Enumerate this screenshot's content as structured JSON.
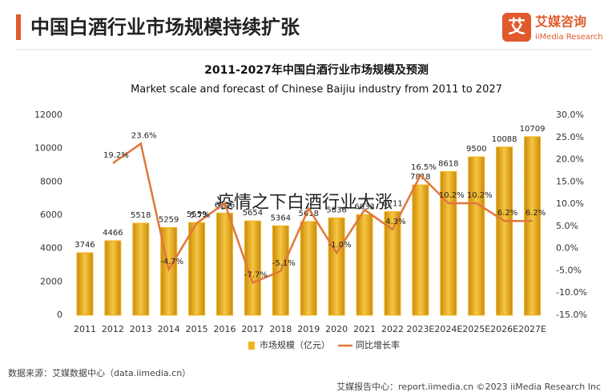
{
  "header": {
    "title": "中国白酒行业市场规模持续扩张",
    "logo": "艾媒咨询",
    "logo_sub": "iiMedia Research"
  },
  "chart_data": {
    "type": "bar",
    "title": "2011-2027年中国白酒行业市场规模及预测",
    "subtitle": "Market scale and forecast of Chinese Baijiu industry from 2011 to 2027",
    "categories": [
      "2011",
      "2012",
      "2013",
      "2014",
      "2015",
      "2016",
      "2017",
      "2018",
      "2019",
      "2020",
      "2021",
      "2022",
      "2023E",
      "2024E",
      "2025E",
      "2026E",
      "2027E"
    ],
    "series": [
      {
        "name": "市场规模（亿元）",
        "type": "bar",
        "color": "#f2b41c",
        "values": [
          3746,
          4466,
          5518,
          5259,
          5559,
          6126,
          5654,
          5364,
          5618,
          5836,
          6033,
          6211,
          7818,
          8618,
          9500,
          10088,
          10709
        ]
      },
      {
        "name": "同比增长率",
        "type": "line",
        "axis": "y2",
        "color": "#e0773a",
        "values": [
          null,
          19.2,
          23.6,
          -4.7,
          5.7,
          10.2,
          -7.7,
          -5.1,
          9.0,
          -1.0,
          8.7,
          4.3,
          16.5,
          10.2,
          10.2,
          6.2,
          6.2
        ],
        "value_labels": [
          null,
          "19.2%",
          "23.6%",
          "-4.7%",
          "5.7%",
          null,
          "-7.7%",
          "-5.1%",
          null,
          "-1.0%",
          null,
          "4.3%",
          "16.5%",
          "10.2%",
          "10.2%",
          "6.2%",
          "6.2%"
        ]
      }
    ],
    "ylim": [
      0,
      12000
    ],
    "yticks": [
      0,
      2000,
      4000,
      6000,
      8000,
      10000,
      12000
    ],
    "y2lim": [
      -15,
      30
    ],
    "y2ticks": [
      {
        "value": -15,
        "label": "-15.0%"
      },
      {
        "value": -10,
        "label": "-10.0%"
      },
      {
        "value": -5,
        "label": "-5.0%"
      },
      {
        "value": 0,
        "label": "0.0%"
      },
      {
        "value": 5,
        "label": "5.0%"
      },
      {
        "value": 10,
        "label": "10.0%"
      },
      {
        "value": 15,
        "label": "15.0%"
      },
      {
        "value": 20,
        "label": "20.0%"
      },
      {
        "value": 25,
        "label": "25.0%"
      },
      {
        "value": 30,
        "label": "30.0%"
      }
    ],
    "grid": false,
    "watermark": "疫情之下白酒行业大涨"
  },
  "footer": {
    "source": "数据来源：艾媒数据中心（data.iimedia.cn）",
    "right": "艾媒报告中心：report.iimedia.cn  ©2023  iiMedia Research Inc"
  }
}
